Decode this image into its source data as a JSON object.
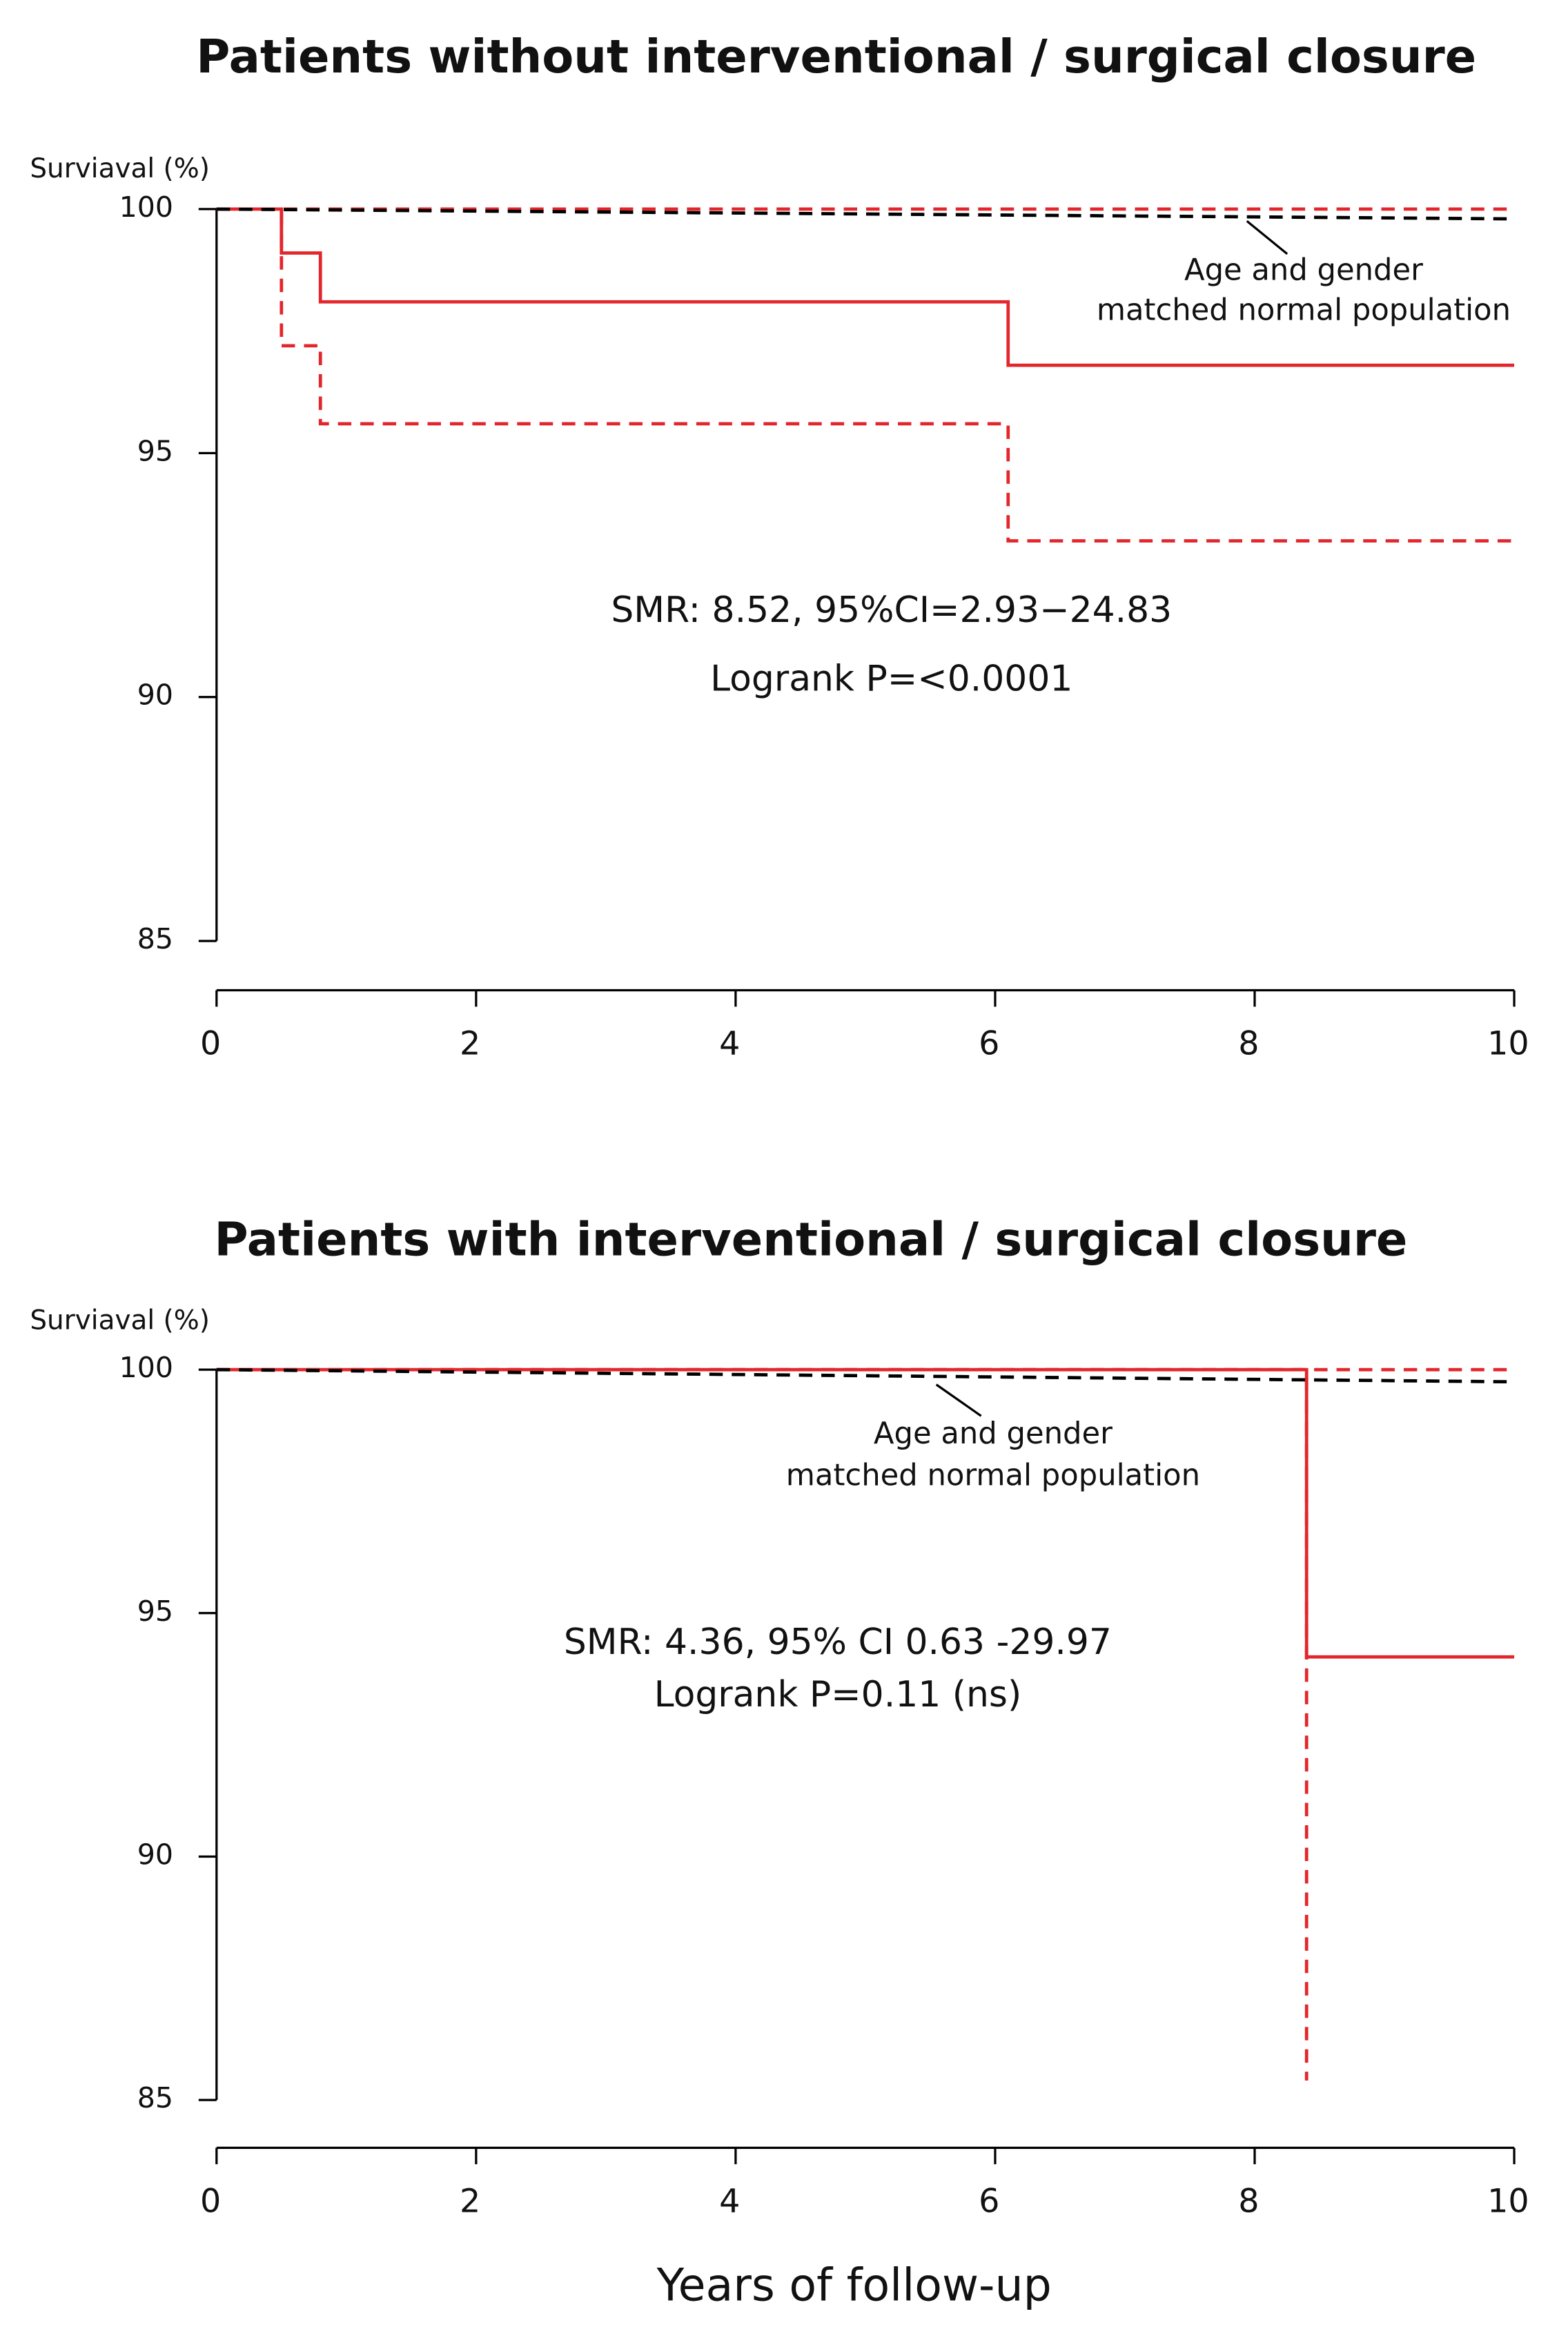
{
  "chart_data": [
    {
      "type": "step",
      "title": "Patients without interventional / surgical closure",
      "ylabel": "Surviaval (%)",
      "xlim": [
        0,
        10
      ],
      "xticks": [
        0,
        2,
        4,
        6,
        8,
        10
      ],
      "ylim": [
        85,
        100
      ],
      "yticks": [
        85,
        90,
        95,
        100
      ],
      "annotation": [
        "Age and gender",
        "matched normal population"
      ],
      "stats": [
        "SMR: 8.52, 95%CI=2.93−24.83",
        "Logrank P=<0.0001"
      ],
      "series": [
        {
          "color": "#e3262b",
          "dash": false,
          "step": true,
          "x": [
            0,
            0.5,
            0.8,
            6.1,
            10
          ],
          "values": [
            100,
            99.1,
            98.1,
            96.8,
            96.8
          ]
        },
        {
          "color": "#e3262b",
          "dash": true,
          "step": true,
          "x": [
            0,
            10
          ],
          "values": [
            100,
            100
          ]
        },
        {
          "color": "#e3262b",
          "dash": true,
          "step": true,
          "x": [
            0,
            0.5,
            0.8,
            6.1,
            10
          ],
          "values": [
            100,
            97.2,
            95.6,
            93.2,
            93.2
          ]
        },
        {
          "color": "#000000",
          "dash": true,
          "step": false,
          "x": [
            0,
            10
          ],
          "values": [
            100,
            99.8
          ]
        }
      ]
    },
    {
      "type": "step",
      "title": "Patients with interventional / surgical closure",
      "ylabel": "Surviaval (%)",
      "xlabel": "Years of follow-up",
      "xlim": [
        0,
        10
      ],
      "xticks": [
        0,
        2,
        4,
        6,
        8,
        10
      ],
      "ylim": [
        85,
        100
      ],
      "yticks": [
        85,
        90,
        95,
        100
      ],
      "annotation": [
        "Age and gender",
        "matched normal population"
      ],
      "stats": [
        "SMR: 4.36, 95% CI 0.63 -29.97",
        "Logrank P=0.11 (ns)"
      ],
      "series": [
        {
          "color": "#e3262b",
          "dash": false,
          "step": true,
          "x": [
            0,
            8.4,
            10
          ],
          "values": [
            100,
            94.1,
            94.1
          ]
        },
        {
          "color": "#e3262b",
          "dash": true,
          "step": true,
          "x": [
            0,
            10
          ],
          "values": [
            100,
            100
          ]
        },
        {
          "color": "#e3262b",
          "dash": true,
          "step": true,
          "x": [
            0,
            8.4
          ],
          "values": [
            100,
            85.4
          ]
        },
        {
          "color": "#000000",
          "dash": true,
          "step": false,
          "x": [
            0,
            10
          ],
          "values": [
            100,
            99.75
          ]
        }
      ]
    }
  ]
}
